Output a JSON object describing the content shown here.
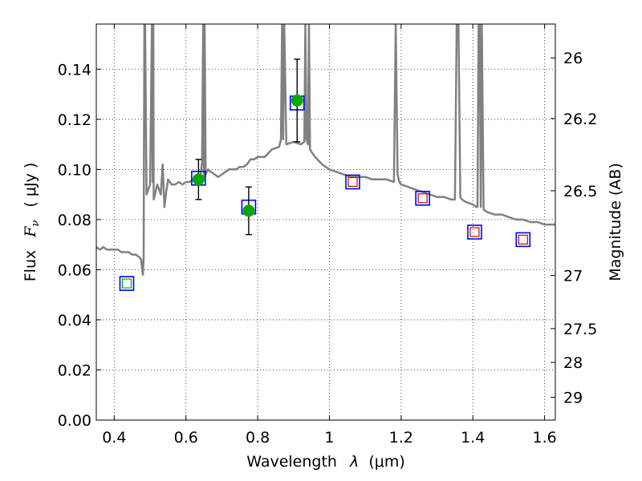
{
  "chart_data": {
    "type": "scatter",
    "xlabel": "Wavelength  λ (μm)",
    "ylabel": "Flux  F_ν  ( μJy )",
    "ylabel_parts": {
      "flux": "Flux",
      "fnu_main": "F",
      "fnu_sub": "ν",
      "unit": "( μJy )"
    },
    "xlabel_parts": {
      "text": "Wavelength",
      "lambda": "λ",
      "unit": "(μm)"
    },
    "y2label": "Magnitude (AB)",
    "xlim": [
      0.35,
      1.63
    ],
    "ylim": [
      0.0,
      0.158
    ],
    "grid": true,
    "x_ticks": [
      0.4,
      0.6,
      0.8,
      1.0,
      1.2,
      1.4,
      1.6
    ],
    "x_tick_labels": [
      "0.4",
      "0.6",
      "0.8",
      "1",
      "1.2",
      "1.4",
      "1.6"
    ],
    "y_ticks": [
      0.0,
      0.02,
      0.04,
      0.06,
      0.08,
      0.1,
      0.12,
      0.14
    ],
    "y_tick_labels": [
      "0.00",
      "0.02",
      "0.04",
      "0.06",
      "0.08",
      "0.10",
      "0.12",
      "0.14"
    ],
    "y2_ticks": [
      {
        "flux": 0.1445,
        "label": "26"
      },
      {
        "flux": 0.1203,
        "label": "26.2"
      },
      {
        "flux": 0.0915,
        "label": "26.5"
      },
      {
        "flux": 0.0577,
        "label": "27"
      },
      {
        "flux": 0.0365,
        "label": "27.5"
      },
      {
        "flux": 0.023,
        "label": "28"
      },
      {
        "flux": 0.0091,
        "label": "29"
      }
    ],
    "colors": {
      "model": "#808080",
      "observed": "#00aa00",
      "box": "#0000ff",
      "predicted_inner": "#cc0000",
      "green_inner": "#00aa00",
      "errorbar": "#000000"
    },
    "series": [
      {
        "role": "model spectrum",
        "x": [
          0.35,
          0.36,
          0.37,
          0.38,
          0.39,
          0.4,
          0.41,
          0.42,
          0.43,
          0.44,
          0.45,
          0.46,
          0.47,
          0.475,
          0.478,
          0.48,
          0.482,
          0.484,
          0.486,
          0.49,
          0.5,
          0.505,
          0.507,
          0.509,
          0.51,
          0.52,
          0.53,
          0.535,
          0.54,
          0.545,
          0.55,
          0.56,
          0.57,
          0.58,
          0.59,
          0.6,
          0.61,
          0.62,
          0.63,
          0.64,
          0.645,
          0.648,
          0.65,
          0.652,
          0.655,
          0.658,
          0.662,
          0.67,
          0.68,
          0.69,
          0.7,
          0.72,
          0.74,
          0.75,
          0.76,
          0.77,
          0.78,
          0.79,
          0.8,
          0.82,
          0.84,
          0.86,
          0.865,
          0.868,
          0.871,
          0.874,
          0.88,
          0.9,
          0.92,
          0.93,
          0.933,
          0.936,
          0.94,
          0.943,
          0.946,
          0.95,
          0.955,
          0.96,
          0.98,
          1.0,
          1.02,
          1.04,
          1.06,
          1.08,
          1.1,
          1.12,
          1.14,
          1.16,
          1.18,
          1.185,
          1.19,
          1.195,
          1.2,
          1.22,
          1.24,
          1.26,
          1.28,
          1.3,
          1.32,
          1.34,
          1.35,
          1.355,
          1.36,
          1.365,
          1.37,
          1.38,
          1.4,
          1.41,
          1.413,
          1.416,
          1.419,
          1.422,
          1.425,
          1.43,
          1.44,
          1.46,
          1.48,
          1.5,
          1.52,
          1.54,
          1.56,
          1.58,
          1.6,
          1.63
        ],
        "y": [
          0.069,
          0.068,
          0.069,
          0.068,
          0.068,
          0.068,
          0.068,
          0.067,
          0.067,
          0.067,
          0.066,
          0.066,
          0.065,
          0.064,
          0.06,
          0.058,
          0.065,
          0.158,
          0.158,
          0.09,
          0.094,
          0.158,
          0.095,
          0.158,
          0.088,
          0.094,
          0.09,
          0.102,
          0.085,
          0.091,
          0.096,
          0.094,
          0.094,
          0.095,
          0.094,
          0.095,
          0.095,
          0.096,
          0.097,
          0.097,
          0.103,
          0.158,
          0.097,
          0.158,
          0.098,
          0.099,
          0.1,
          0.099,
          0.098,
          0.097,
          0.098,
          0.1,
          0.1,
          0.101,
          0.101,
          0.102,
          0.104,
          0.104,
          0.105,
          0.105,
          0.108,
          0.109,
          0.112,
          0.158,
          0.112,
          0.158,
          0.11,
          0.111,
          0.11,
          0.111,
          0.158,
          0.112,
          0.11,
          0.158,
          0.108,
          0.107,
          0.106,
          0.105,
          0.102,
          0.1,
          0.099,
          0.098,
          0.097,
          0.097,
          0.097,
          0.096,
          0.096,
          0.096,
          0.095,
          0.158,
          0.098,
          0.095,
          0.094,
          0.093,
          0.092,
          0.091,
          0.09,
          0.089,
          0.089,
          0.088,
          0.088,
          0.158,
          0.158,
          0.089,
          0.088,
          0.087,
          0.086,
          0.085,
          0.085,
          0.158,
          0.158,
          0.085,
          0.158,
          0.084,
          0.083,
          0.082,
          0.082,
          0.081,
          0.08,
          0.08,
          0.079,
          0.079,
          0.078,
          0.078
        ]
      },
      {
        "role": "observed photometry",
        "marker": "circle",
        "points": [
          {
            "x": 0.635,
            "y": 0.096,
            "err": 0.008
          },
          {
            "x": 0.775,
            "y": 0.0835,
            "err": 0.0095
          },
          {
            "x": 0.91,
            "y": 0.1275,
            "err": 0.0165
          }
        ]
      },
      {
        "role": "model photometry",
        "marker": "square",
        "points": [
          {
            "x": 0.435,
            "y": 0.0545,
            "inner": "green"
          },
          {
            "x": 0.635,
            "y": 0.0965,
            "inner": "none"
          },
          {
            "x": 0.775,
            "y": 0.085,
            "inner": "none"
          },
          {
            "x": 0.91,
            "y": 0.1265,
            "inner": "none"
          },
          {
            "x": 1.065,
            "y": 0.095,
            "inner": "red"
          },
          {
            "x": 1.26,
            "y": 0.0885,
            "inner": "red"
          },
          {
            "x": 1.405,
            "y": 0.075,
            "inner": "red"
          },
          {
            "x": 1.54,
            "y": 0.072,
            "inner": "red"
          }
        ]
      }
    ]
  }
}
